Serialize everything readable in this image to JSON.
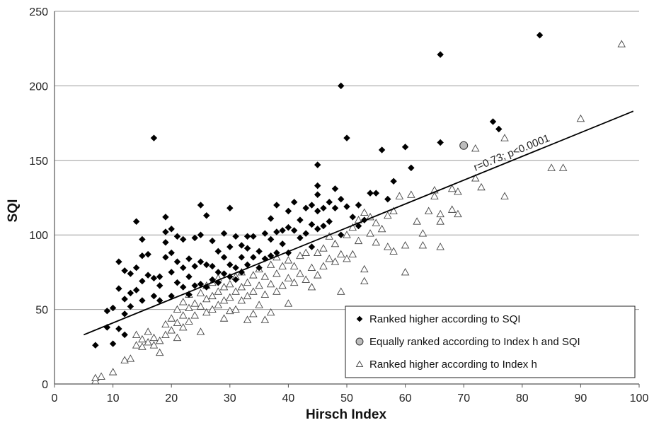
{
  "chart_data": {
    "type": "scatter",
    "xlabel": "Hirsch Index",
    "ylabel": "SQI",
    "xlim": [
      0,
      100
    ],
    "ylim": [
      0,
      250
    ],
    "xticks": [
      0,
      10,
      20,
      30,
      40,
      50,
      60,
      70,
      80,
      90,
      100
    ],
    "yticks": [
      0,
      50,
      100,
      150,
      200,
      250
    ],
    "grid": "horizontal",
    "legend_position": "bottom-right",
    "regression": {
      "label": "r=0.73; p<0.0001",
      "x": [
        5,
        99
      ],
      "y": [
        33,
        183
      ]
    },
    "series": [
      {
        "name": "Ranked higher according to SQI",
        "marker": "diamond",
        "color": "#000000",
        "points": [
          [
            7,
            26
          ],
          [
            9,
            38
          ],
          [
            9,
            49
          ],
          [
            10,
            27
          ],
          [
            10,
            51
          ],
          [
            11,
            37
          ],
          [
            11,
            64
          ],
          [
            11,
            82
          ],
          [
            12,
            33
          ],
          [
            12,
            47
          ],
          [
            12,
            57
          ],
          [
            12,
            76
          ],
          [
            13,
            52
          ],
          [
            13,
            61
          ],
          [
            13,
            74
          ],
          [
            14,
            63
          ],
          [
            14,
            78
          ],
          [
            14,
            109
          ],
          [
            15,
            56
          ],
          [
            15,
            69
          ],
          [
            15,
            86
          ],
          [
            15,
            97
          ],
          [
            16,
            73
          ],
          [
            16,
            87
          ],
          [
            17,
            59
          ],
          [
            17,
            71
          ],
          [
            17,
            165
          ],
          [
            18,
            56
          ],
          [
            18,
            66
          ],
          [
            18,
            72
          ],
          [
            19,
            85
          ],
          [
            19,
            95
          ],
          [
            19,
            102
          ],
          [
            19,
            112
          ],
          [
            20,
            59
          ],
          [
            20,
            75
          ],
          [
            20,
            88
          ],
          [
            20,
            104
          ],
          [
            21,
            68
          ],
          [
            21,
            82
          ],
          [
            21,
            99
          ],
          [
            22,
            65
          ],
          [
            22,
            78
          ],
          [
            22,
            97
          ],
          [
            23,
            60
          ],
          [
            23,
            72
          ],
          [
            23,
            84
          ],
          [
            24,
            66
          ],
          [
            24,
            79
          ],
          [
            24,
            98
          ],
          [
            25,
            67
          ],
          [
            25,
            82
          ],
          [
            25,
            100
          ],
          [
            25,
            120
          ],
          [
            26,
            65
          ],
          [
            26,
            80
          ],
          [
            26,
            113
          ],
          [
            27,
            70
          ],
          [
            27,
            79
          ],
          [
            27,
            96
          ],
          [
            28,
            68
          ],
          [
            28,
            75
          ],
          [
            28,
            89
          ],
          [
            29,
            74
          ],
          [
            29,
            85
          ],
          [
            29,
            101
          ],
          [
            30,
            72
          ],
          [
            30,
            80
          ],
          [
            30,
            92
          ],
          [
            30,
            118
          ],
          [
            31,
            70
          ],
          [
            31,
            78
          ],
          [
            31,
            99
          ],
          [
            32,
            75
          ],
          [
            32,
            85
          ],
          [
            32,
            93
          ],
          [
            33,
            80
          ],
          [
            33,
            91
          ],
          [
            33,
            99
          ],
          [
            34,
            85
          ],
          [
            34,
            99
          ],
          [
            35,
            78
          ],
          [
            35,
            89
          ],
          [
            36,
            84
          ],
          [
            36,
            101
          ],
          [
            37,
            86
          ],
          [
            37,
            97
          ],
          [
            37,
            111
          ],
          [
            38,
            88
          ],
          [
            38,
            102
          ],
          [
            38,
            120
          ],
          [
            39,
            94
          ],
          [
            39,
            103
          ],
          [
            40,
            88
          ],
          [
            40,
            105
          ],
          [
            40,
            116
          ],
          [
            41,
            103
          ],
          [
            41,
            122
          ],
          [
            42,
            98
          ],
          [
            42,
            110
          ],
          [
            43,
            101
          ],
          [
            43,
            118
          ],
          [
            44,
            92
          ],
          [
            44,
            107
          ],
          [
            44,
            120
          ],
          [
            45,
            104
          ],
          [
            45,
            116
          ],
          [
            45,
            127
          ],
          [
            45,
            133
          ],
          [
            45,
            147
          ],
          [
            46,
            106
          ],
          [
            46,
            118
          ],
          [
            47,
            109
          ],
          [
            47,
            122
          ],
          [
            48,
            118
          ],
          [
            48,
            131
          ],
          [
            49,
            100
          ],
          [
            49,
            124
          ],
          [
            49,
            200
          ],
          [
            50,
            119
          ],
          [
            50,
            165
          ],
          [
            51,
            112
          ],
          [
            52,
            106
          ],
          [
            52,
            120
          ],
          [
            53,
            110
          ],
          [
            54,
            128
          ],
          [
            55,
            128
          ],
          [
            56,
            157
          ],
          [
            57,
            124
          ],
          [
            58,
            136
          ],
          [
            60,
            159
          ],
          [
            61,
            145
          ],
          [
            66,
            162
          ],
          [
            66,
            221
          ],
          [
            75,
            176
          ],
          [
            76,
            171
          ],
          [
            83,
            234
          ]
        ]
      },
      {
        "name": "Equally ranked according to Index h and SQI",
        "marker": "circle",
        "color": "#b8b8b8",
        "points": [
          [
            70,
            160
          ]
        ]
      },
      {
        "name": "Ranked higher according to Index h",
        "marker": "triangle",
        "color": "#ffffff",
        "points": [
          [
            7,
            2
          ],
          [
            7,
            4
          ],
          [
            8,
            5
          ],
          [
            10,
            8
          ],
          [
            12,
            16
          ],
          [
            13,
            17
          ],
          [
            14,
            26
          ],
          [
            14,
            33
          ],
          [
            15,
            25
          ],
          [
            15,
            30
          ],
          [
            16,
            28
          ],
          [
            16,
            35
          ],
          [
            17,
            26
          ],
          [
            17,
            31
          ],
          [
            18,
            21
          ],
          [
            18,
            29
          ],
          [
            19,
            33
          ],
          [
            19,
            40
          ],
          [
            20,
            36
          ],
          [
            20,
            44
          ],
          [
            21,
            31
          ],
          [
            21,
            41
          ],
          [
            21,
            50
          ],
          [
            22,
            38
          ],
          [
            22,
            46
          ],
          [
            22,
            55
          ],
          [
            23,
            42
          ],
          [
            23,
            51
          ],
          [
            23,
            60
          ],
          [
            24,
            46
          ],
          [
            24,
            54
          ],
          [
            25,
            35
          ],
          [
            25,
            52
          ],
          [
            25,
            61
          ],
          [
            26,
            48
          ],
          [
            26,
            57
          ],
          [
            26,
            66
          ],
          [
            27,
            50
          ],
          [
            27,
            59
          ],
          [
            27,
            68
          ],
          [
            28,
            53
          ],
          [
            28,
            62
          ],
          [
            28,
            71
          ],
          [
            29,
            44
          ],
          [
            29,
            56
          ],
          [
            29,
            65
          ],
          [
            30,
            49
          ],
          [
            30,
            58
          ],
          [
            30,
            67
          ],
          [
            31,
            50
          ],
          [
            31,
            62
          ],
          [
            31,
            72
          ],
          [
            32,
            56
          ],
          [
            32,
            65
          ],
          [
            32,
            75
          ],
          [
            33,
            43
          ],
          [
            33,
            59
          ],
          [
            33,
            68
          ],
          [
            34,
            47
          ],
          [
            34,
            62
          ],
          [
            34,
            73
          ],
          [
            35,
            53
          ],
          [
            35,
            66
          ],
          [
            35,
            77
          ],
          [
            36,
            43
          ],
          [
            36,
            60
          ],
          [
            36,
            72
          ],
          [
            37,
            48
          ],
          [
            37,
            67
          ],
          [
            37,
            80
          ],
          [
            38,
            62
          ],
          [
            38,
            74
          ],
          [
            38,
            85
          ],
          [
            39,
            66
          ],
          [
            39,
            79
          ],
          [
            40,
            54
          ],
          [
            40,
            71
          ],
          [
            40,
            83
          ],
          [
            41,
            68
          ],
          [
            41,
            79
          ],
          [
            42,
            74
          ],
          [
            42,
            86
          ],
          [
            43,
            70
          ],
          [
            43,
            88
          ],
          [
            44,
            65
          ],
          [
            44,
            78
          ],
          [
            45,
            73
          ],
          [
            45,
            88
          ],
          [
            46,
            79
          ],
          [
            46,
            91
          ],
          [
            47,
            84
          ],
          [
            47,
            99
          ],
          [
            48,
            82
          ],
          [
            48,
            94
          ],
          [
            49,
            62
          ],
          [
            49,
            87
          ],
          [
            50,
            84
          ],
          [
            50,
            100
          ],
          [
            51,
            87
          ],
          [
            51,
            105
          ],
          [
            52,
            96
          ],
          [
            52,
            110
          ],
          [
            53,
            69
          ],
          [
            53,
            77
          ],
          [
            53,
            115
          ],
          [
            54,
            101
          ],
          [
            54,
            112
          ],
          [
            55,
            95
          ],
          [
            55,
            108
          ],
          [
            56,
            104
          ],
          [
            57,
            92
          ],
          [
            57,
            113
          ],
          [
            58,
            89
          ],
          [
            58,
            116
          ],
          [
            59,
            126
          ],
          [
            60,
            75
          ],
          [
            60,
            93
          ],
          [
            61,
            127
          ],
          [
            62,
            109
          ],
          [
            63,
            93
          ],
          [
            63,
            101
          ],
          [
            64,
            116
          ],
          [
            65,
            126
          ],
          [
            65,
            130
          ],
          [
            66,
            92
          ],
          [
            66,
            109
          ],
          [
            66,
            114
          ],
          [
            68,
            117
          ],
          [
            68,
            131
          ],
          [
            69,
            114
          ],
          [
            69,
            129
          ],
          [
            72,
            138
          ],
          [
            72,
            158
          ],
          [
            73,
            132
          ],
          [
            77,
            126
          ],
          [
            77,
            165
          ],
          [
            85,
            145
          ],
          [
            87,
            145
          ],
          [
            90,
            178
          ],
          [
            97,
            228
          ]
        ]
      }
    ]
  }
}
